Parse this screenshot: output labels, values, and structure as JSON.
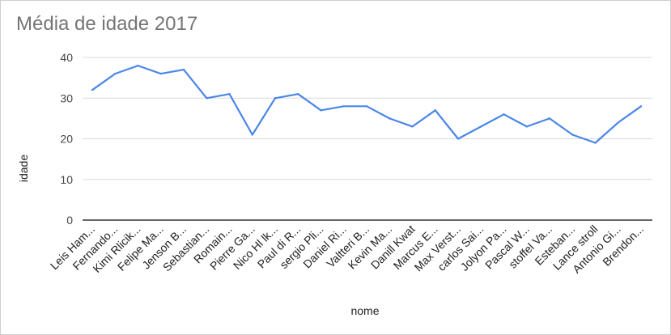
{
  "chart_data": {
    "type": "line",
    "title": "Média de idade 2017",
    "xlabel": "nome",
    "ylabel": "idade",
    "categories": [
      "Leis Ham...",
      "Fernando...",
      "Kimi Rlicik...",
      "Felipe Ma...",
      "Jenson B...",
      "Sebastian...",
      "Romain...",
      "Pierre Ga...",
      "Nico Hl lk...",
      "Paul di R...",
      "sergio Pli...",
      "Daniel Ri...",
      "Valtteri B...",
      "Kevin Ma...",
      "Danill Kwat",
      "Marcus E...",
      "Max Verst...",
      "carlos Sai...",
      "Jolyon Pa...",
      "Pascal W...",
      "stoffel Va...",
      "Esteban...",
      "Lance stroll",
      "Antonio Gi...",
      "Brendon..."
    ],
    "series": [
      {
        "values": [
          32,
          36,
          38,
          36,
          37,
          30,
          31,
          21,
          30,
          31,
          27,
          28,
          28,
          25,
          23,
          27,
          20,
          23,
          26,
          23,
          25,
          21,
          19,
          24,
          28
        ]
      }
    ],
    "ylim": [
      0,
      40
    ],
    "yticks": [
      0,
      10,
      20,
      30,
      40
    ],
    "grid": true,
    "legend": "none",
    "line_color": "#4a86e8",
    "grid_color": "#d9d9d9",
    "baseline_color": "#333333"
  }
}
